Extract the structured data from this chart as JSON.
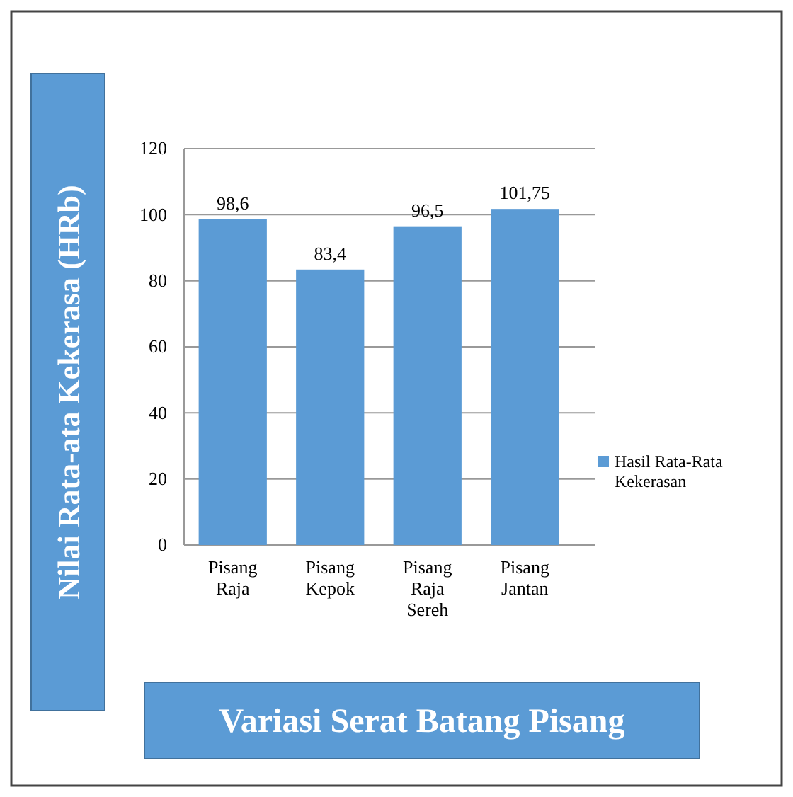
{
  "chart_data": {
    "type": "bar",
    "xlabel": "Variasi Serat Batang Pisang",
    "ylabel": "Nilai Rata-ata Kekerasa (HRb)",
    "categories": [
      "Pisang Raja",
      "Pisang Kepok",
      "Pisang Raja Sereh",
      "Pisang Jantan"
    ],
    "series": [
      {
        "name": "Hasil Rata-Rata Kekerasan",
        "color": "#5b9bd5",
        "values": [
          98.6,
          83.4,
          96.5,
          101.75
        ],
        "value_labels": [
          "98,6",
          "83,4",
          "96,5",
          "101,75"
        ]
      }
    ],
    "ylim": [
      0,
      120
    ],
    "yticks": [
      0,
      20,
      40,
      60,
      80,
      100,
      120
    ],
    "grid": "y",
    "legend": "right"
  }
}
